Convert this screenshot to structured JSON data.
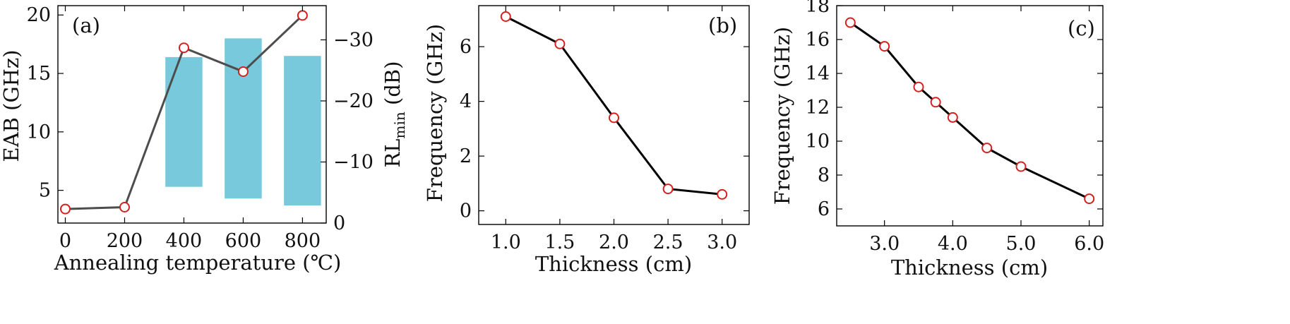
{
  "chart_data": [
    {
      "type": "bar+line",
      "panel_label": "(a)",
      "xlabel": "Annealing temperature (℃)",
      "ylabel": "EAB (GHz)",
      "ylabel_right_main": "RL",
      "ylabel_right_sub": "min",
      "ylabel_right_unit": "(dB)",
      "xlim": [
        -25,
        880
      ],
      "ylim": [
        2.2,
        20.8
      ],
      "ylim_right": [
        0,
        -35.6
      ],
      "xticks": [
        0,
        200,
        400,
        600,
        800
      ],
      "xtick_labels": [
        "0",
        "200",
        "400",
        "600",
        "800"
      ],
      "yticks": [
        5,
        10,
        15,
        20
      ],
      "ytick_labels": [
        "5",
        "10",
        "15",
        "20"
      ],
      "yticks_right": [
        0,
        -10,
        -20,
        -30
      ],
      "ytick_right_labels": [
        "0",
        "−10",
        "−20",
        "−30"
      ],
      "bars": {
        "axis": "left",
        "color": "#78c9dc",
        "x": [
          400,
          600,
          800
        ],
        "bottom": [
          5.3,
          4.3,
          3.7
        ],
        "top": [
          16.4,
          18.0,
          16.5
        ],
        "width": 125
      },
      "series": [
        {
          "name": "RLmin",
          "axis": "right",
          "color": "#4d4d4d",
          "x": [
            0,
            200,
            400,
            600,
            800
          ],
          "values": [
            -2.3,
            -2.6,
            -28.7,
            -24.8,
            -34.0
          ]
        }
      ]
    },
    {
      "type": "line",
      "panel_label": "(b)",
      "xlabel": "Thickness (cm)",
      "ylabel": "Frequency (GHz)",
      "xlim": [
        0.75,
        3.25
      ],
      "ylim": [
        -0.5,
        7.5
      ],
      "xticks": [
        1.0,
        1.5,
        2.0,
        2.5,
        3.0
      ],
      "xtick_labels": [
        "1.0",
        "1.5",
        "2.0",
        "2.5",
        "3.0"
      ],
      "yticks": [
        0,
        2,
        4,
        6
      ],
      "ytick_labels": [
        "0",
        "2",
        "4",
        "6"
      ],
      "series": [
        {
          "name": "Frequency",
          "color": "#000000",
          "x": [
            1.0,
            1.5,
            2.0,
            2.5,
            3.0
          ],
          "values": [
            7.1,
            6.1,
            3.4,
            0.8,
            0.6
          ]
        }
      ]
    },
    {
      "type": "line",
      "panel_label": "(c)",
      "xlabel": "Thickness (cm)",
      "ylabel": "Frequency (GHz)",
      "xlim": [
        2.3,
        6.2
      ],
      "ylim": [
        5.0,
        18.0
      ],
      "xticks": [
        3.0,
        4.0,
        5.0,
        6.0
      ],
      "xtick_labels": [
        "3.0",
        "4.0",
        "5.0",
        "6.0"
      ],
      "yticks": [
        6,
        8,
        10,
        12,
        14,
        16,
        18
      ],
      "ytick_labels": [
        "6",
        "8",
        "10",
        "12",
        "14",
        "16",
        "18"
      ],
      "series": [
        {
          "name": "Frequency",
          "color": "#000000",
          "x": [
            2.5,
            3.0,
            3.5,
            3.75,
            4.0,
            4.5,
            5.0,
            6.0
          ],
          "values": [
            17.0,
            15.6,
            13.2,
            12.3,
            11.4,
            9.6,
            8.5,
            6.6
          ]
        }
      ]
    }
  ]
}
